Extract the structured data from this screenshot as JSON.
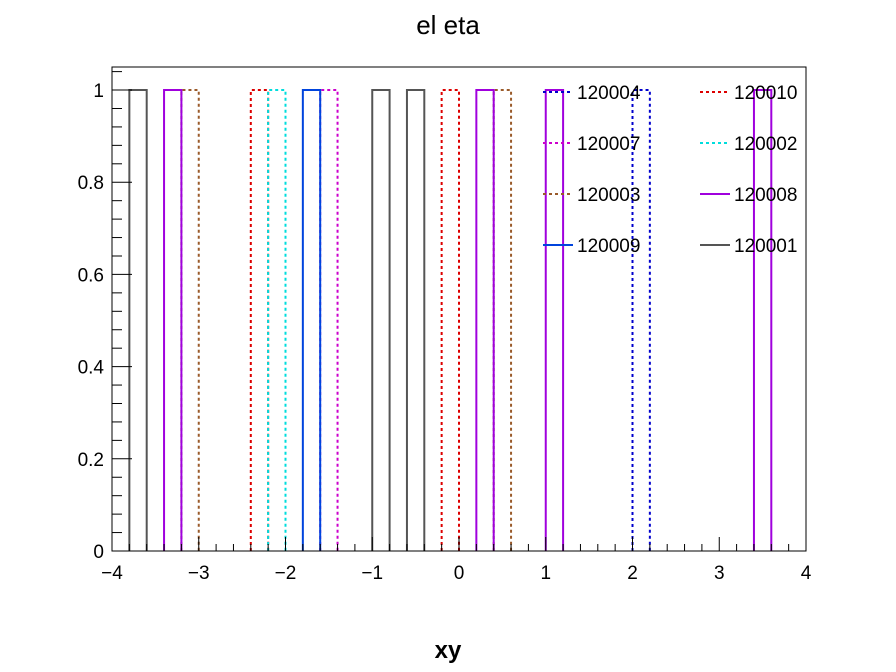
{
  "chart_data": {
    "type": "step-histogram",
    "title": "el eta",
    "xlabel": "xy",
    "ylabel": "",
    "xlim": [
      -4,
      4
    ],
    "ylim": [
      0,
      1.05
    ],
    "xticks": [
      "−4",
      "−3",
      "−2",
      "−1",
      "0",
      "1",
      "2",
      "3",
      "4"
    ],
    "yticks": [
      "0",
      "0.2",
      "0.4",
      "0.6",
      "0.8",
      "1"
    ],
    "bin_width": 0.2,
    "legend_position": "top-right",
    "legend_columns": 2,
    "series": [
      {
        "name": "120004",
        "color": "#0000cc",
        "style": "dotted",
        "bins": [
          [
            2.0,
            1
          ]
        ]
      },
      {
        "name": "120010",
        "color": "#dd0000",
        "style": "dotted",
        "bins": [
          [
            -2.4,
            1
          ],
          [
            -0.2,
            1
          ]
        ]
      },
      {
        "name": "120007",
        "color": "#cc00cc",
        "style": "dotted",
        "bins": [
          [
            -1.6,
            1
          ]
        ]
      },
      {
        "name": "120002",
        "color": "#00dddd",
        "style": "dotted",
        "bins": [
          [
            -2.2,
            1
          ]
        ]
      },
      {
        "name": "120003",
        "color": "#9a5a2a",
        "style": "dotted",
        "bins": [
          [
            -3.2,
            1
          ],
          [
            0.4,
            1
          ]
        ]
      },
      {
        "name": "120008",
        "color": "#a000dd",
        "style": "solid",
        "bins": [
          [
            -3.4,
            1
          ],
          [
            0.2,
            1
          ],
          [
            1.0,
            1
          ],
          [
            3.4,
            1
          ]
        ]
      },
      {
        "name": "120009",
        "color": "#0044dd",
        "style": "solid",
        "bins": [
          [
            -1.8,
            1
          ]
        ]
      },
      {
        "name": "120001",
        "color": "#555555",
        "style": "solid",
        "bins": [
          [
            -3.8,
            1
          ],
          [
            -1.0,
            1
          ],
          [
            -0.6,
            1
          ]
        ]
      }
    ]
  }
}
